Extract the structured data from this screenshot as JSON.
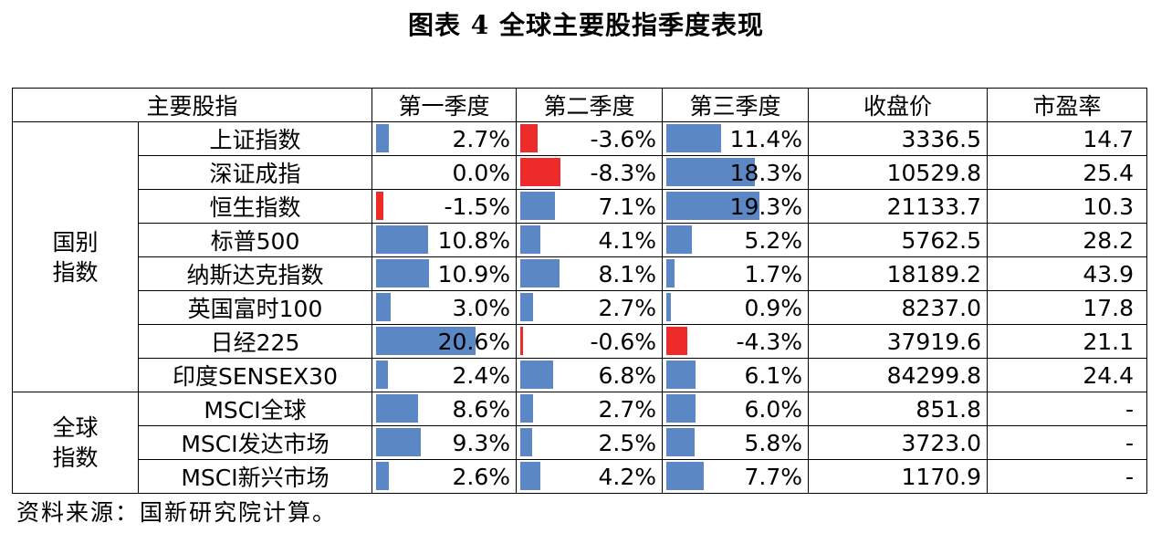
{
  "title": "图表 4  全球主要股指季度表现",
  "headers": [
    "主要股指",
    "第一季度",
    "第二季度",
    "第三季度",
    "收盘价",
    "市盈率"
  ],
  "colors": {
    "positive": "#5b87c4",
    "negative": "#ee2b2b"
  },
  "groups": [
    {
      "label": "国别\n指数",
      "rows": [
        {
          "name": "上证指数",
          "q1": "2.7%",
          "q2": "-3.6%",
          "q3": "11.4%",
          "close": "3336.5",
          "pe": "14.7"
        },
        {
          "name": "深证成指",
          "q1": "0.0%",
          "q2": "-8.3%",
          "q3": "18.3%",
          "close": "10529.8",
          "pe": "25.4"
        },
        {
          "name": "恒生指数",
          "q1": "-1.5%",
          "q2": "7.1%",
          "q3": "19.3%",
          "close": "21133.7",
          "pe": "10.3"
        },
        {
          "name": "标普500",
          "q1": "10.8%",
          "q2": "4.1%",
          "q3": "5.2%",
          "close": "5762.5",
          "pe": "28.2"
        },
        {
          "name": "纳斯达克指数",
          "q1": "10.9%",
          "q2": "8.1%",
          "q3": "1.7%",
          "close": "18189.2",
          "pe": "43.9"
        },
        {
          "name": "英国富时100",
          "q1": "3.0%",
          "q2": "2.7%",
          "q3": "0.9%",
          "close": "8237.0",
          "pe": "17.8"
        },
        {
          "name": "日经225",
          "q1": "20.6%",
          "q2": "-0.6%",
          "q3": "-4.3%",
          "close": "37919.6",
          "pe": "21.1"
        },
        {
          "name": "印度SENSEX30",
          "q1": "2.4%",
          "q2": "6.8%",
          "q3": "6.1%",
          "close": "84299.8",
          "pe": "24.4"
        }
      ]
    },
    {
      "label": "全球\n指数",
      "rows": [
        {
          "name": "MSCI全球",
          "q1": "8.6%",
          "q2": "2.7%",
          "q3": "6.0%",
          "close": "851.8",
          "pe": "-"
        },
        {
          "name": "MSCI发达市场",
          "q1": "9.3%",
          "q2": "2.5%",
          "q3": "5.8%",
          "close": "3723.0",
          "pe": "-"
        },
        {
          "name": "MSCI新兴市场",
          "q1": "2.6%",
          "q2": "4.2%",
          "q3": "7.7%",
          "close": "1170.9",
          "pe": "-"
        }
      ]
    }
  ],
  "source": "资料来源：国新研究院计算。"
}
